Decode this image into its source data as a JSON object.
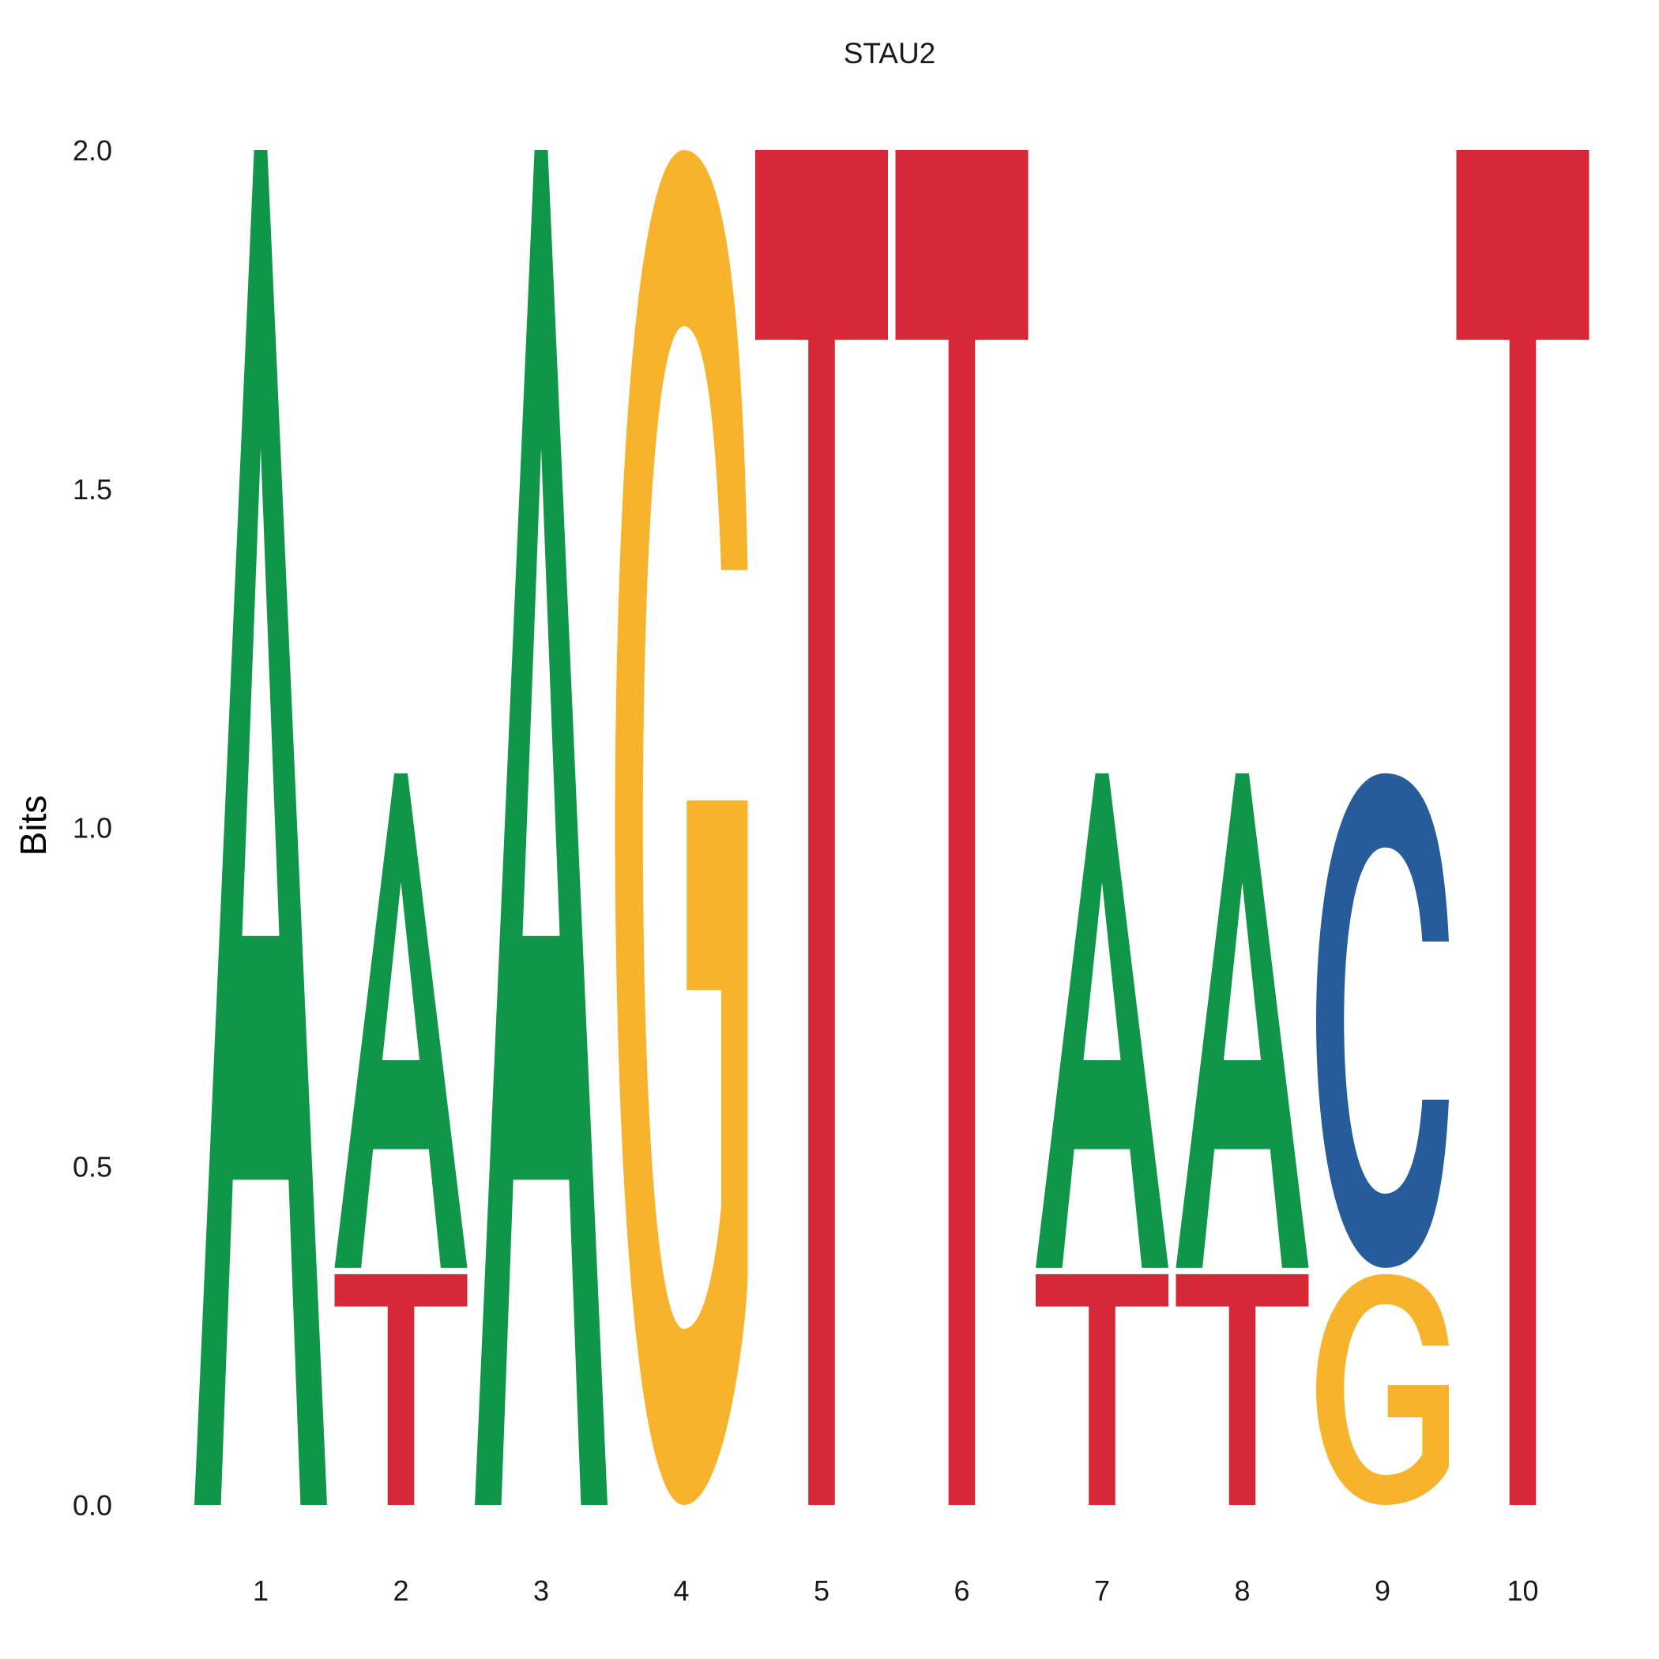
{
  "chart_data": {
    "type": "sequence-logo",
    "title": "STAU2",
    "xlabel": "",
    "ylabel": "Bits",
    "ylim": [
      0,
      2
    ],
    "y_ticks": [
      "0.0",
      "0.5",
      "1.0",
      "1.5",
      "2.0"
    ],
    "categories": [
      "1",
      "2",
      "3",
      "4",
      "5",
      "6",
      "7",
      "8",
      "9",
      "10"
    ],
    "grid": false,
    "colors": {
      "A": "#109648",
      "C": "#255C99",
      "G": "#F7B32B",
      "T": "#D62839"
    },
    "positions": [
      {
        "position": "1",
        "letters": [
          {
            "base": "A",
            "bits": 2.0
          }
        ]
      },
      {
        "position": "2",
        "letters": [
          {
            "base": "T",
            "bits": 0.35
          },
          {
            "base": "A",
            "bits": 0.73
          }
        ]
      },
      {
        "position": "3",
        "letters": [
          {
            "base": "A",
            "bits": 2.0
          }
        ]
      },
      {
        "position": "4",
        "letters": [
          {
            "base": "G",
            "bits": 2.0
          }
        ]
      },
      {
        "position": "5",
        "letters": [
          {
            "base": "T",
            "bits": 2.0
          }
        ]
      },
      {
        "position": "6",
        "letters": [
          {
            "base": "T",
            "bits": 2.0
          }
        ]
      },
      {
        "position": "7",
        "letters": [
          {
            "base": "T",
            "bits": 0.35
          },
          {
            "base": "A",
            "bits": 0.73
          }
        ]
      },
      {
        "position": "8",
        "letters": [
          {
            "base": "T",
            "bits": 0.35
          },
          {
            "base": "A",
            "bits": 0.73
          }
        ]
      },
      {
        "position": "9",
        "letters": [
          {
            "base": "G",
            "bits": 0.35
          },
          {
            "base": "C",
            "bits": 0.73
          }
        ]
      },
      {
        "position": "10",
        "letters": [
          {
            "base": "T",
            "bits": 2.0
          }
        ]
      }
    ]
  }
}
